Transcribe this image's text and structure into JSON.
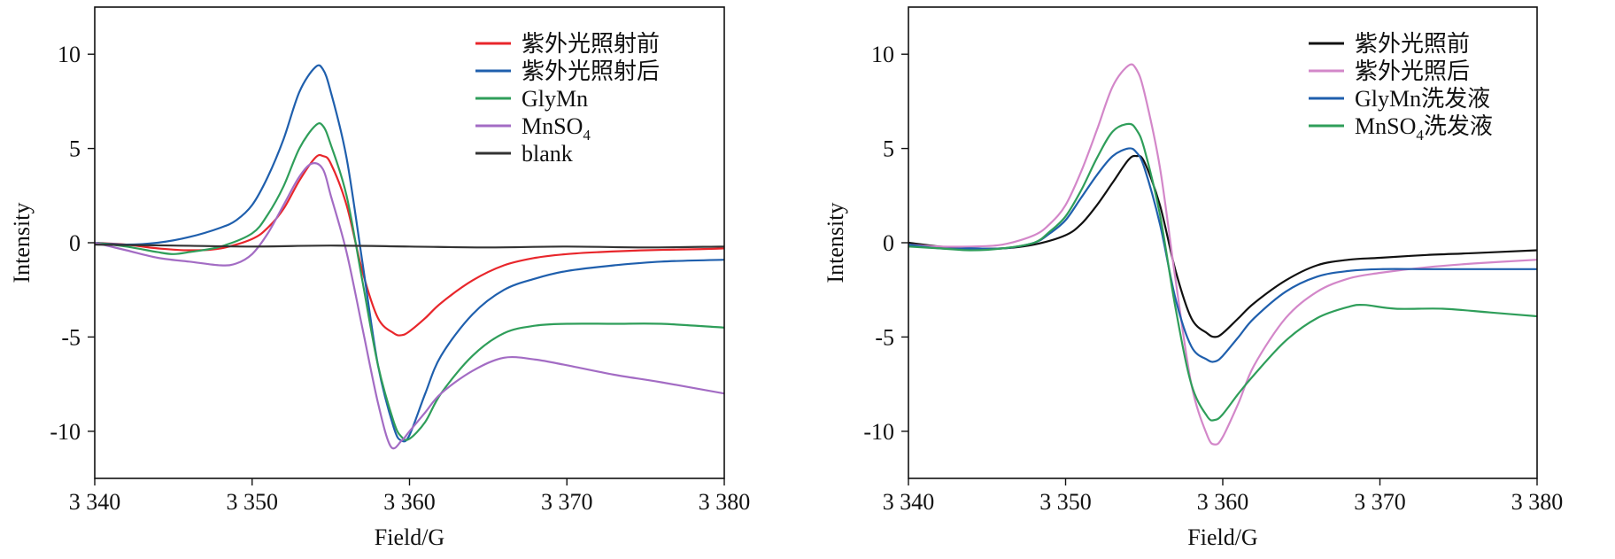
{
  "chart_data": [
    {
      "type": "line",
      "xlabel": "Field/G",
      "ylabel": "Intensity",
      "xlim": [
        3340,
        3380
      ],
      "ylim": [
        -12.5,
        12.5
      ],
      "xticks": [
        3340,
        3350,
        3360,
        3370,
        3380
      ],
      "xtick_labels": [
        "3 340",
        "3 350",
        "3 360",
        "3 370",
        "3 380"
      ],
      "yticks": [
        10,
        5,
        0,
        -5,
        -10
      ],
      "ytick_labels": [
        "10",
        "5",
        "0",
        "-5",
        "-10"
      ],
      "grid": false,
      "legend_position": "top-right",
      "series": [
        {
          "name": "紫外光照射前",
          "color": "#e8262b",
          "points": [
            [
              3340,
              0
            ],
            [
              3342,
              -0.1
            ],
            [
              3344,
              -0.3
            ],
            [
              3346,
              -0.4
            ],
            [
              3348,
              -0.3
            ],
            [
              3350,
              0.2
            ],
            [
              3351,
              0.8
            ],
            [
              3352,
              1.8
            ],
            [
              3353,
              3.3
            ],
            [
              3354,
              4.5
            ],
            [
              3354.5,
              4.6
            ],
            [
              3355,
              4.2
            ],
            [
              3356,
              2.0
            ],
            [
              3357,
              -1.5
            ],
            [
              3358,
              -4.0
            ],
            [
              3359,
              -4.8
            ],
            [
              3359.5,
              -4.9
            ],
            [
              3360,
              -4.7
            ],
            [
              3361,
              -4.0
            ],
            [
              3362,
              -3.2
            ],
            [
              3364,
              -2.0
            ],
            [
              3366,
              -1.2
            ],
            [
              3368,
              -0.8
            ],
            [
              3370,
              -0.6
            ],
            [
              3372,
              -0.5
            ],
            [
              3375,
              -0.4
            ],
            [
              3378,
              -0.35
            ],
            [
              3380,
              -0.3
            ]
          ]
        },
        {
          "name": "紫外光照射后",
          "color": "#1f5fad",
          "points": [
            [
              3340,
              0
            ],
            [
              3342,
              -0.1
            ],
            [
              3344,
              0
            ],
            [
              3346,
              0.3
            ],
            [
              3348,
              0.8
            ],
            [
              3349,
              1.2
            ],
            [
              3350,
              2.0
            ],
            [
              3351,
              3.5
            ],
            [
              3352,
              5.5
            ],
            [
              3353,
              8.0
            ],
            [
              3354,
              9.3
            ],
            [
              3354.5,
              9.2
            ],
            [
              3355,
              8.0
            ],
            [
              3356,
              4.5
            ],
            [
              3357,
              -1.0
            ],
            [
              3358,
              -6.5
            ],
            [
              3359,
              -9.8
            ],
            [
              3359.5,
              -10.5
            ],
            [
              3360,
              -10.2
            ],
            [
              3361,
              -8.0
            ],
            [
              3362,
              -6.0
            ],
            [
              3364,
              -3.8
            ],
            [
              3366,
              -2.5
            ],
            [
              3368,
              -1.9
            ],
            [
              3370,
              -1.5
            ],
            [
              3373,
              -1.2
            ],
            [
              3376,
              -1.0
            ],
            [
              3380,
              -0.9
            ]
          ]
        },
        {
          "name": "GlyMn",
          "color": "#2f9e5a",
          "points": [
            [
              3340,
              0
            ],
            [
              3342,
              -0.2
            ],
            [
              3344,
              -0.5
            ],
            [
              3345,
              -0.6
            ],
            [
              3346,
              -0.5
            ],
            [
              3348,
              -0.2
            ],
            [
              3350,
              0.5
            ],
            [
              3351,
              1.5
            ],
            [
              3352,
              3.0
            ],
            [
              3353,
              5.0
            ],
            [
              3354,
              6.2
            ],
            [
              3354.5,
              6.2
            ],
            [
              3355,
              5.2
            ],
            [
              3356,
              2.5
            ],
            [
              3357,
              -2.0
            ],
            [
              3358,
              -6.5
            ],
            [
              3359,
              -9.5
            ],
            [
              3359.5,
              -10.3
            ],
            [
              3360,
              -10.4
            ],
            [
              3361,
              -9.5
            ],
            [
              3362,
              -8.0
            ],
            [
              3364,
              -6.0
            ],
            [
              3366,
              -4.8
            ],
            [
              3368,
              -4.4
            ],
            [
              3370,
              -4.3
            ],
            [
              3373,
              -4.3
            ],
            [
              3376,
              -4.3
            ],
            [
              3380,
              -4.5
            ]
          ]
        },
        {
          "name": "MnSO4",
          "color": "#a36cc4",
          "points": [
            [
              3340,
              0
            ],
            [
              3342,
              -0.4
            ],
            [
              3344,
              -0.8
            ],
            [
              3346,
              -1.0
            ],
            [
              3348,
              -1.2
            ],
            [
              3349,
              -1.1
            ],
            [
              3350,
              -0.6
            ],
            [
              3351,
              0.5
            ],
            [
              3352,
              2.0
            ],
            [
              3353,
              3.5
            ],
            [
              3353.8,
              4.2
            ],
            [
              3354.5,
              3.9
            ],
            [
              3355,
              2.5
            ],
            [
              3356,
              -0.5
            ],
            [
              3357,
              -4.5
            ],
            [
              3358,
              -8.5
            ],
            [
              3358.8,
              -10.8
            ],
            [
              3359.5,
              -10.5
            ],
            [
              3360,
              -10.0
            ],
            [
              3361,
              -9.0
            ],
            [
              3362,
              -8.0
            ],
            [
              3364,
              -6.8
            ],
            [
              3366,
              -6.1
            ],
            [
              3368,
              -6.2
            ],
            [
              3370,
              -6.5
            ],
            [
              3373,
              -7.0
            ],
            [
              3376,
              -7.4
            ],
            [
              3380,
              -8.0
            ]
          ]
        },
        {
          "name": "blank",
          "color": "#333333",
          "points": [
            [
              3340,
              -0.1
            ],
            [
              3345,
              -0.15
            ],
            [
              3350,
              -0.2
            ],
            [
              3355,
              -0.15
            ],
            [
              3360,
              -0.2
            ],
            [
              3365,
              -0.25
            ],
            [
              3370,
              -0.2
            ],
            [
              3375,
              -0.25
            ],
            [
              3380,
              -0.2
            ]
          ]
        }
      ],
      "legend_labels": [
        "紫外光照射前",
        "紫外光照射后",
        "GlyMn",
        "MnSO",
        "blank"
      ],
      "legend_subscripts": [
        "",
        "",
        "",
        "4",
        ""
      ]
    },
    {
      "type": "line",
      "xlabel": "Field/G",
      "ylabel": "Intensity",
      "xlim": [
        3340,
        3380
      ],
      "ylim": [
        -12.5,
        12.5
      ],
      "xticks": [
        3340,
        3350,
        3360,
        3370,
        3380
      ],
      "xtick_labels": [
        "3 340",
        "3 350",
        "3 360",
        "3 370",
        "3 380"
      ],
      "yticks": [
        10,
        5,
        0,
        -5,
        -10
      ],
      "ytick_labels": [
        "10",
        "5",
        "0",
        "-5",
        "-10"
      ],
      "grid": false,
      "legend_position": "top-right",
      "series": [
        {
          "name": "紫外光照前",
          "color": "#111111",
          "points": [
            [
              3340,
              0
            ],
            [
              3342,
              -0.2
            ],
            [
              3344,
              -0.3
            ],
            [
              3346,
              -0.3
            ],
            [
              3348,
              -0.1
            ],
            [
              3350,
              0.4
            ],
            [
              3351,
              1.0
            ],
            [
              3352,
              2.0
            ],
            [
              3353,
              3.2
            ],
            [
              3354,
              4.4
            ],
            [
              3354.5,
              4.6
            ],
            [
              3355,
              4.3
            ],
            [
              3356,
              2.0
            ],
            [
              3357,
              -1.5
            ],
            [
              3358,
              -4.0
            ],
            [
              3359,
              -4.8
            ],
            [
              3359.5,
              -5.0
            ],
            [
              3360,
              -4.8
            ],
            [
              3361,
              -4.0
            ],
            [
              3362,
              -3.2
            ],
            [
              3364,
              -2.0
            ],
            [
              3366,
              -1.2
            ],
            [
              3368,
              -0.9
            ],
            [
              3370,
              -0.8
            ],
            [
              3373,
              -0.65
            ],
            [
              3376,
              -0.55
            ],
            [
              3380,
              -0.4
            ]
          ]
        },
        {
          "name": "紫外光照后",
          "color": "#d387c9",
          "points": [
            [
              3340,
              -0.1
            ],
            [
              3342,
              -0.2
            ],
            [
              3344,
              -0.2
            ],
            [
              3346,
              -0.1
            ],
            [
              3348,
              0.4
            ],
            [
              3349,
              1.0
            ],
            [
              3350,
              2.0
            ],
            [
              3351,
              3.8
            ],
            [
              3352,
              6.0
            ],
            [
              3353,
              8.3
            ],
            [
              3354,
              9.4
            ],
            [
              3354.5,
              9.2
            ],
            [
              3355,
              8.0
            ],
            [
              3356,
              4.0
            ],
            [
              3357,
              -2.0
            ],
            [
              3358,
              -7.5
            ],
            [
              3359,
              -10.2
            ],
            [
              3359.5,
              -10.7
            ],
            [
              3360,
              -10.3
            ],
            [
              3361,
              -8.5
            ],
            [
              3362,
              -6.5
            ],
            [
              3364,
              -4.0
            ],
            [
              3366,
              -2.6
            ],
            [
              3368,
              -1.9
            ],
            [
              3370,
              -1.6
            ],
            [
              3373,
              -1.3
            ],
            [
              3376,
              -1.1
            ],
            [
              3380,
              -0.9
            ]
          ]
        },
        {
          "name": "GlyMn洗发液",
          "color": "#1f5fad",
          "points": [
            [
              3340,
              -0.1
            ],
            [
              3342,
              -0.3
            ],
            [
              3344,
              -0.3
            ],
            [
              3346,
              -0.3
            ],
            [
              3348,
              0
            ],
            [
              3349,
              0.5
            ],
            [
              3350,
              1.2
            ],
            [
              3351,
              2.4
            ],
            [
              3352,
              3.6
            ],
            [
              3353,
              4.6
            ],
            [
              3354,
              5.0
            ],
            [
              3354.5,
              4.8
            ],
            [
              3355,
              4.0
            ],
            [
              3356,
              1.0
            ],
            [
              3357,
              -3.0
            ],
            [
              3358,
              -5.5
            ],
            [
              3359,
              -6.2
            ],
            [
              3359.5,
              -6.3
            ],
            [
              3360,
              -6.0
            ],
            [
              3361,
              -5.0
            ],
            [
              3362,
              -4.0
            ],
            [
              3364,
              -2.6
            ],
            [
              3366,
              -1.8
            ],
            [
              3368,
              -1.5
            ],
            [
              3370,
              -1.4
            ],
            [
              3373,
              -1.4
            ],
            [
              3376,
              -1.4
            ],
            [
              3380,
              -1.4
            ]
          ]
        },
        {
          "name": "MnSO4洗发液",
          "color": "#2f9e5a",
          "points": [
            [
              3340,
              -0.2
            ],
            [
              3342,
              -0.3
            ],
            [
              3344,
              -0.4
            ],
            [
              3346,
              -0.3
            ],
            [
              3348,
              0
            ],
            [
              3349,
              0.6
            ],
            [
              3350,
              1.4
            ],
            [
              3351,
              2.8
            ],
            [
              3352,
              4.5
            ],
            [
              3353,
              5.9
            ],
            [
              3354,
              6.3
            ],
            [
              3354.5,
              6.0
            ],
            [
              3355,
              5.0
            ],
            [
              3356,
              1.5
            ],
            [
              3357,
              -3.5
            ],
            [
              3358,
              -7.5
            ],
            [
              3359,
              -9.2
            ],
            [
              3359.5,
              -9.4
            ],
            [
              3360,
              -9.1
            ],
            [
              3361,
              -8.0
            ],
            [
              3362,
              -7.0
            ],
            [
              3364,
              -5.2
            ],
            [
              3366,
              -4.0
            ],
            [
              3368,
              -3.4
            ],
            [
              3369,
              -3.3
            ],
            [
              3371,
              -3.5
            ],
            [
              3374,
              -3.5
            ],
            [
              3377,
              -3.7
            ],
            [
              3380,
              -3.9
            ]
          ]
        }
      ],
      "legend_labels": [
        "紫外光照前",
        "紫外光照后",
        "GlyMn洗发液",
        "MnSO"
      ],
      "legend_label_tail": [
        "",
        "",
        "",
        "洗发液"
      ],
      "legend_subscripts": [
        "",
        "",
        "",
        "4"
      ]
    }
  ]
}
